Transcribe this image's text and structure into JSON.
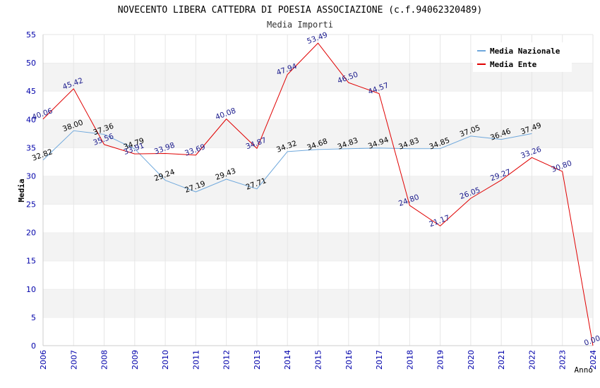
{
  "chart_data": {
    "type": "line",
    "title": "NOVECENTO LIBERA CATTEDRA DI POESIA ASSOCIAZIONE (c.f.94062320489)",
    "subtitle": "Media Importi",
    "ylabel": "Media",
    "xlabel": "Anno",
    "ylim": [
      0,
      55
    ],
    "yticks": [
      "0",
      "5",
      "10",
      "15",
      "20",
      "25",
      "30",
      "35",
      "40",
      "45",
      "50",
      "55"
    ],
    "x": [
      "2006",
      "2007",
      "2008",
      "2009",
      "2010",
      "2011",
      "2012",
      "2013",
      "2014",
      "2015",
      "2016",
      "2017",
      "2018",
      "2019",
      "2020",
      "2021",
      "2022",
      "2023",
      "2024"
    ],
    "grid": true,
    "legend_position": "top-right",
    "series": [
      {
        "name": "Media Nazionale",
        "color": "#6fa8dc",
        "values": [
          32.82,
          38.0,
          37.36,
          34.79,
          29.24,
          27.19,
          29.43,
          27.71,
          34.32,
          34.68,
          34.83,
          34.94,
          34.83,
          34.85,
          37.05,
          36.46,
          37.49,
          null,
          null
        ],
        "labels": [
          "32.82",
          "38.00",
          "37.36",
          "34.79",
          "29.24",
          "27.19",
          "29.43",
          "27.71",
          "34.32",
          "34.68",
          "34.83",
          "34.94",
          "34.83",
          "34.85",
          "37.05",
          "36.46",
          "37.49",
          null,
          null
        ]
      },
      {
        "name": "Media Ente",
        "color": "#e00000",
        "values": [
          40.06,
          45.42,
          35.56,
          33.91,
          33.98,
          33.69,
          40.08,
          34.87,
          47.94,
          53.49,
          46.5,
          44.57,
          24.8,
          21.17,
          26.05,
          29.27,
          33.26,
          30.8,
          0.0
        ],
        "labels": [
          "40.06",
          "45.42",
          "35.56",
          "33.91",
          "33.98",
          "33.69",
          "40.08",
          "34.87",
          "47.94",
          "53.49",
          "46.50",
          "44.57",
          "24.80",
          "21.17",
          "26.05",
          "29.27",
          "33.26",
          "30.80",
          "0.00"
        ]
      }
    ]
  }
}
